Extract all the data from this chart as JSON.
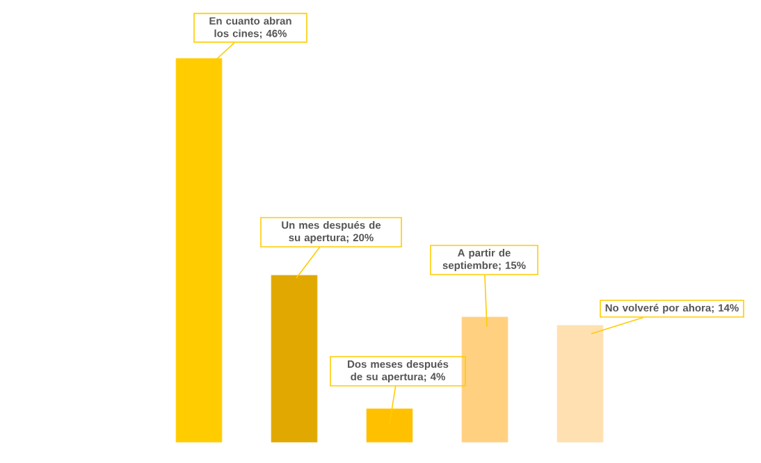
{
  "chart_data": {
    "type": "bar",
    "categories": [
      null,
      null,
      null,
      null,
      null
    ],
    "values": [
      46,
      20,
      4,
      15,
      14
    ],
    "colors": [
      "#ffcc00",
      "#e0a800",
      "#ffc000",
      "#ffd080",
      "#ffe0b0"
    ],
    "value_labels": [
      "En cuanto abran los cines; 46%",
      "Un mes después de su apertura; 20%",
      "Dos meses después de su apertura; 4%",
      "A partir de septiembre; 15%",
      "No volveré por ahora; 14%"
    ]
  }
}
